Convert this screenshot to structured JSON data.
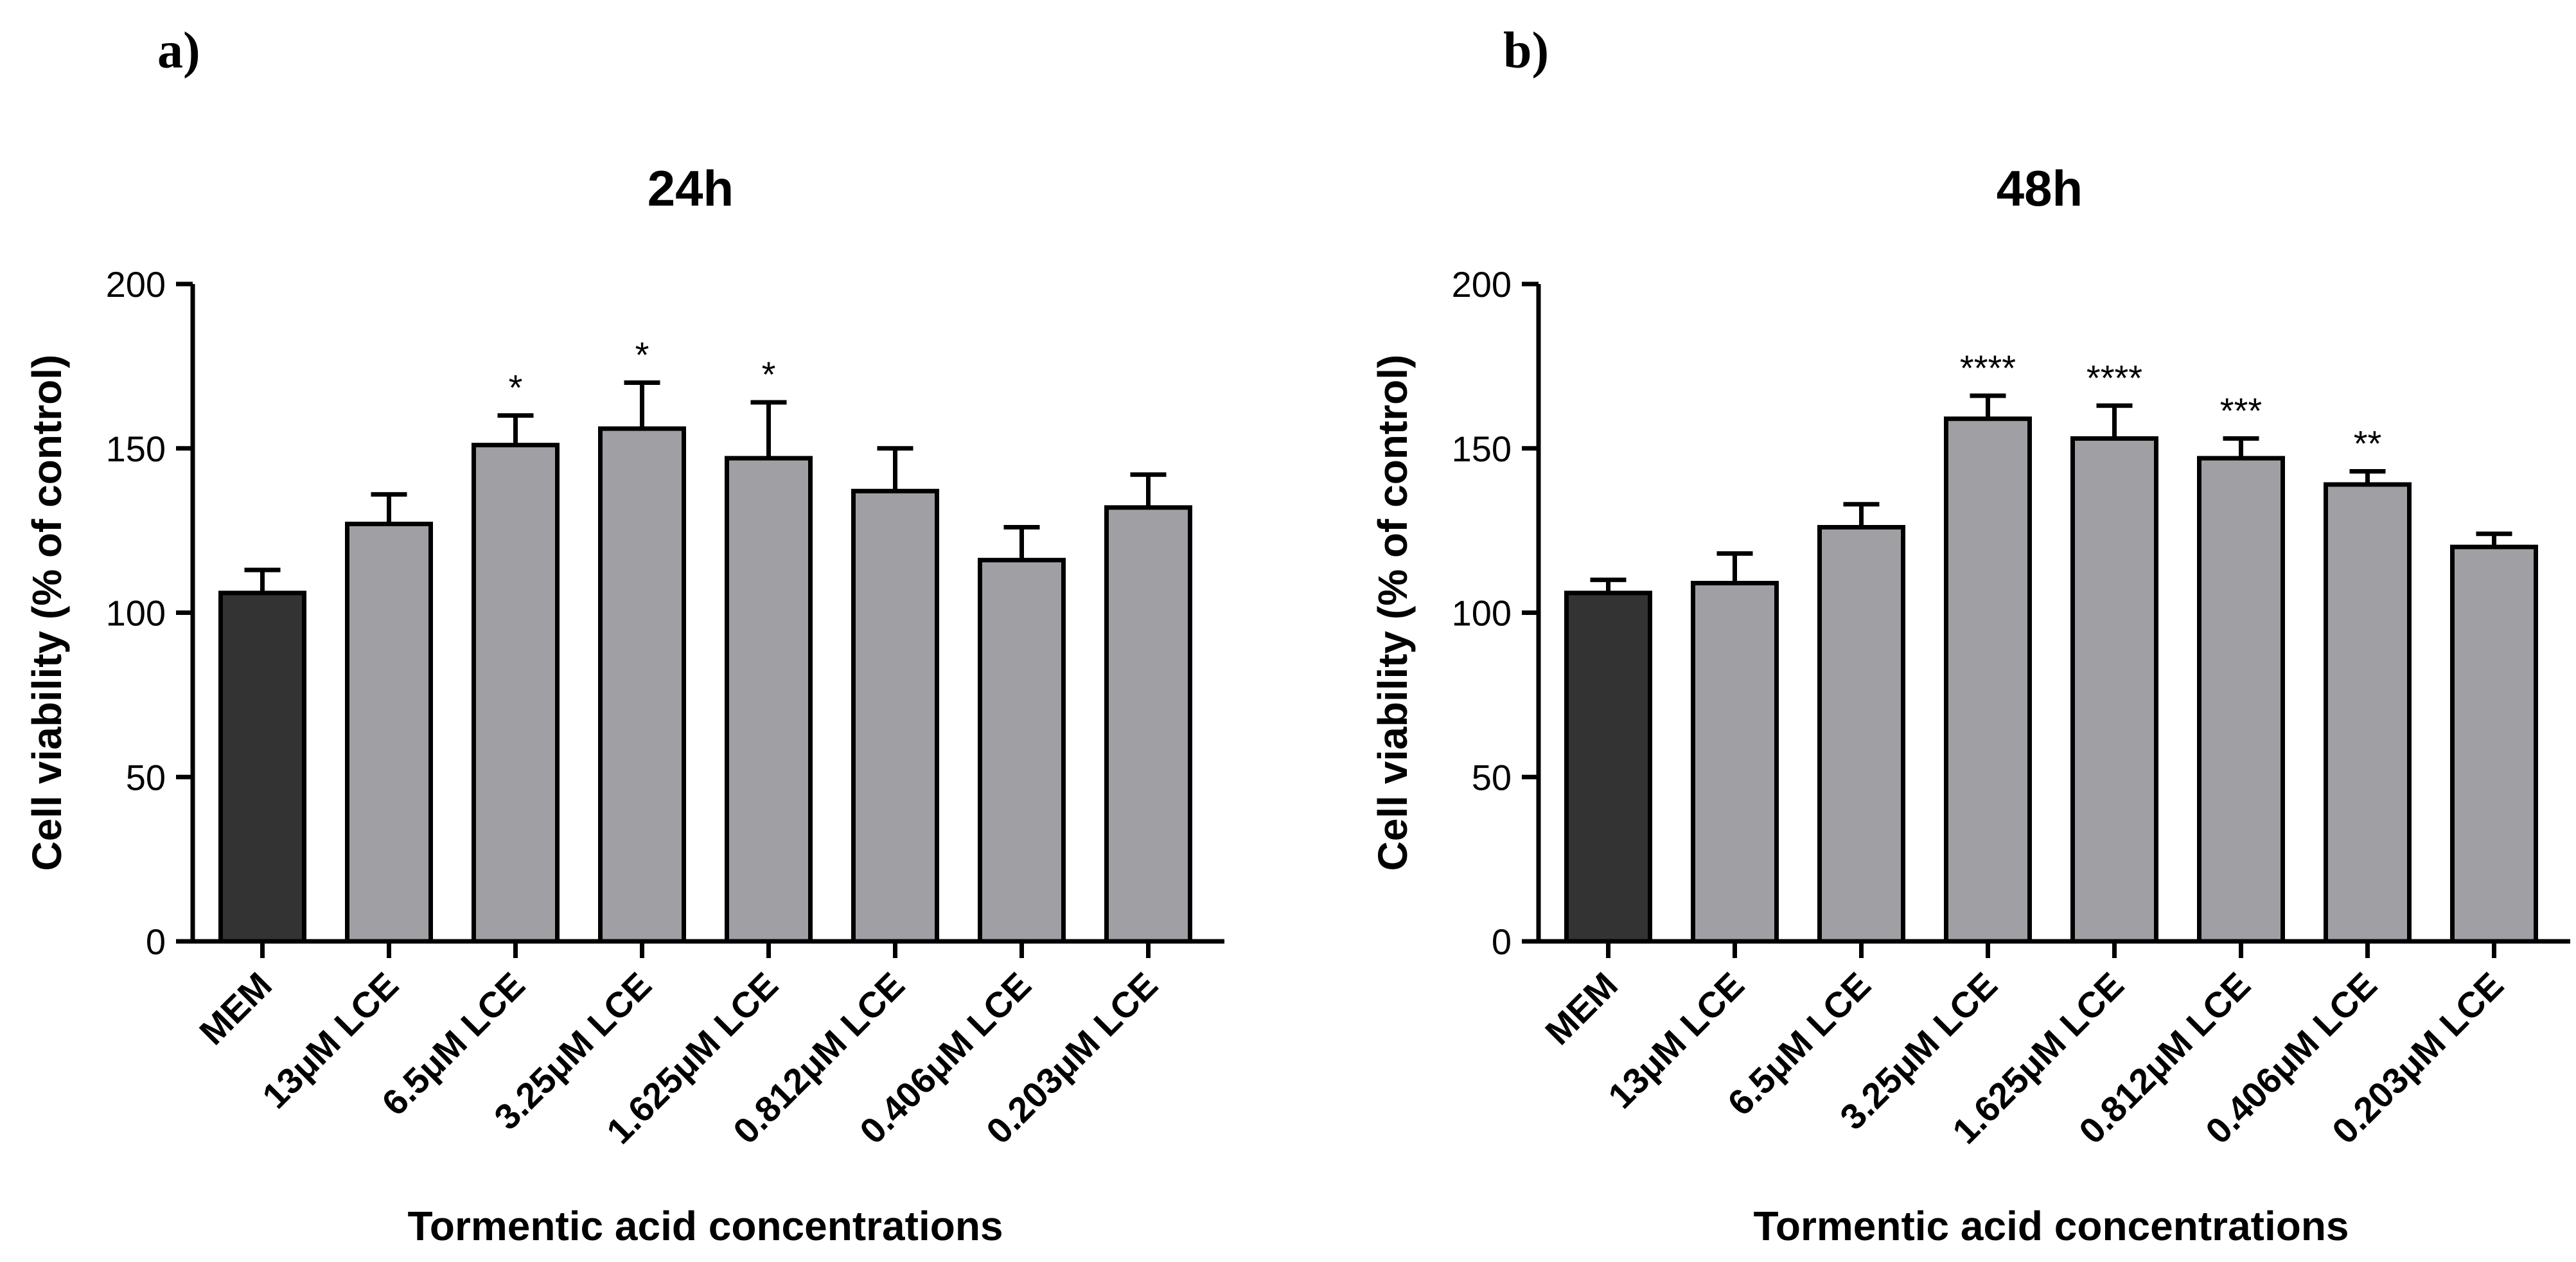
{
  "chart_data": [
    {
      "panel": "a)",
      "type": "bar",
      "title": "24h",
      "xlabel": "Tormentic acid concentrations",
      "ylabel": "Cell viability (% of control)",
      "ylim": [
        0,
        200
      ],
      "yticks": [
        "0",
        "50",
        "100",
        "150",
        "200"
      ],
      "categories": [
        "MEM",
        "13μM LCE",
        "6.5μM LCE",
        "3.25μM LCE",
        "1.625μM LCE",
        "0.812μM LCE",
        "0.406μM LCE",
        "0.203μM LCE"
      ],
      "values": [
        106,
        127,
        151,
        156,
        147,
        137,
        116,
        132
      ],
      "errors": [
        7,
        9,
        9,
        14,
        17,
        13,
        10,
        10
      ],
      "significance": [
        "",
        "",
        "*",
        "*",
        "*",
        "",
        "",
        ""
      ],
      "colors": [
        "#333333",
        "#a0a0a4",
        "#a0a0a4",
        "#a0a0a4",
        "#a0a0a4",
        "#a0a0a4",
        "#a0a0a4",
        "#a0a0a4"
      ]
    },
    {
      "panel": "b)",
      "type": "bar",
      "title": "48h",
      "xlabel": "Tormentic acid concentrations",
      "ylabel": "Cell viability (% of control)",
      "ylim": [
        0,
        200
      ],
      "yticks": [
        "0",
        "50",
        "100",
        "150",
        "200"
      ],
      "categories": [
        "MEM",
        "13μM LCE",
        "6.5μM LCE",
        "3.25μM LCE",
        "1.625μM LCE",
        "0.812μM LCE",
        "0.406μM LCE",
        "0.203μM LCE"
      ],
      "values": [
        106,
        109,
        126,
        159,
        153,
        147,
        139,
        120
      ],
      "errors": [
        4,
        9,
        7,
        7,
        10,
        6,
        4,
        4
      ],
      "significance": [
        "",
        "",
        "",
        "****",
        "****",
        "***",
        "**",
        ""
      ],
      "colors": [
        "#333333",
        "#a0a0a4",
        "#a0a0a4",
        "#a0a0a4",
        "#a0a0a4",
        "#a0a0a4",
        "#a0a0a4",
        "#a0a0a4"
      ]
    }
  ]
}
